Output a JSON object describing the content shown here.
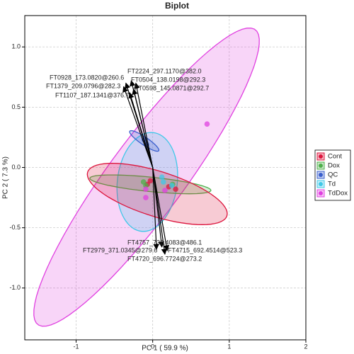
{
  "chart_data": {
    "type": "biplot",
    "title": "Biplot",
    "x_label": "PC 1 ( 59.9 %)",
    "y_label": "PC 2 ( 7.3 %)",
    "xlim": [
      -1.67,
      2.0
    ],
    "ylim": [
      -1.43,
      1.26
    ],
    "xticks": [
      -1,
      0,
      1,
      2
    ],
    "yticks": [
      {
        "value": 1,
        "label": "1.0"
      },
      {
        "value": 0.5,
        "label": "0.5"
      },
      {
        "value": 0,
        "label": "0.0"
      },
      {
        "value": -0.5,
        "label": "-0.5"
      },
      {
        "value": -1,
        "label": "-1.0"
      }
    ],
    "grid": true,
    "legend": "right",
    "series": [
      {
        "name": "Cont",
        "color": "#dc143c",
        "x": [
          -0.03,
          0.21,
          0.3,
          -0.07
        ],
        "y": [
          -0.11,
          -0.16,
          -0.18,
          -0.14
        ],
        "ellipse": {
          "center": [
            0.06,
            -0.22
          ],
          "a": [
            0.91,
            -0.18
          ],
          "b": [
            -0.08,
            -0.18
          ]
        }
      },
      {
        "name": "Dox",
        "color": "#4daf4a",
        "x": [
          -0.12,
          -0.09,
          0.26
        ],
        "y": [
          -0.12,
          -0.15,
          -0.14
        ],
        "ellipse": {
          "center": [
            -0.03,
            -0.14
          ],
          "a": [
            0.79,
            -0.05
          ],
          "b": [
            0.0,
            -0.06
          ]
        }
      },
      {
        "name": "QC",
        "color": "#3a5fcd",
        "x": [
          -0.11,
          -0.08
        ],
        "y": [
          0.23,
          0.19
        ],
        "ellipse": {
          "center": [
            -0.11,
            0.22
          ],
          "a": [
            0.19,
            -0.08
          ],
          "b": [
            -0.02,
            -0.03
          ]
        }
      },
      {
        "name": "Td",
        "color": "#3fc8e8",
        "x": [
          0.12,
          0.25,
          0.14
        ],
        "y": [
          -0.08,
          -0.15,
          -0.12
        ],
        "ellipse": {
          "center": [
            -0.07,
            -0.12
          ],
          "a": [
            0.07,
            0.41
          ],
          "b": [
            0.39,
            -0.02
          ]
        }
      },
      {
        "name": "TdDox",
        "color": "#e040e0",
        "x": [
          0.71,
          -0.09,
          0.16,
          -0.09
        ],
        "y": [
          0.36,
          -0.18,
          -0.19,
          -0.25
        ],
        "ellipse": {
          "center": [
            -0.08,
            -0.08
          ],
          "a": [
            1.44,
            1.21
          ],
          "b": [
            0.31,
            -0.26
          ]
        }
      }
    ],
    "loadings": [
      {
        "label": "FT2224_297.1170@382.0",
        "x": -0.28,
        "y": 0.72
      },
      {
        "label": "FT0504_138.0198@292.3",
        "x": -0.22,
        "y": 0.7
      },
      {
        "label": "FT0928_173.0820@260.6",
        "x": -0.35,
        "y": 0.7
      },
      {
        "label": "FT1379_209.0796@282.3",
        "x": -0.38,
        "y": 0.67
      },
      {
        "label": "FT0598_145.0871@292.7",
        "x": -0.25,
        "y": 0.65
      },
      {
        "label": "FT1107_187.1341@376.7",
        "x": -0.3,
        "y": 0.62
      },
      {
        "label": "FT4757_732.4083@486.1",
        "x": 0.12,
        "y": -0.66
      },
      {
        "label": "FT2979_371.0345@279.6",
        "x": 0.05,
        "y": -0.68
      },
      {
        "label": "FT4715_692.4514@523.3",
        "x": 0.19,
        "y": -0.69
      },
      {
        "label": "FT4720_696.7724@273.2",
        "x": 0.16,
        "y": -0.72
      }
    ]
  }
}
